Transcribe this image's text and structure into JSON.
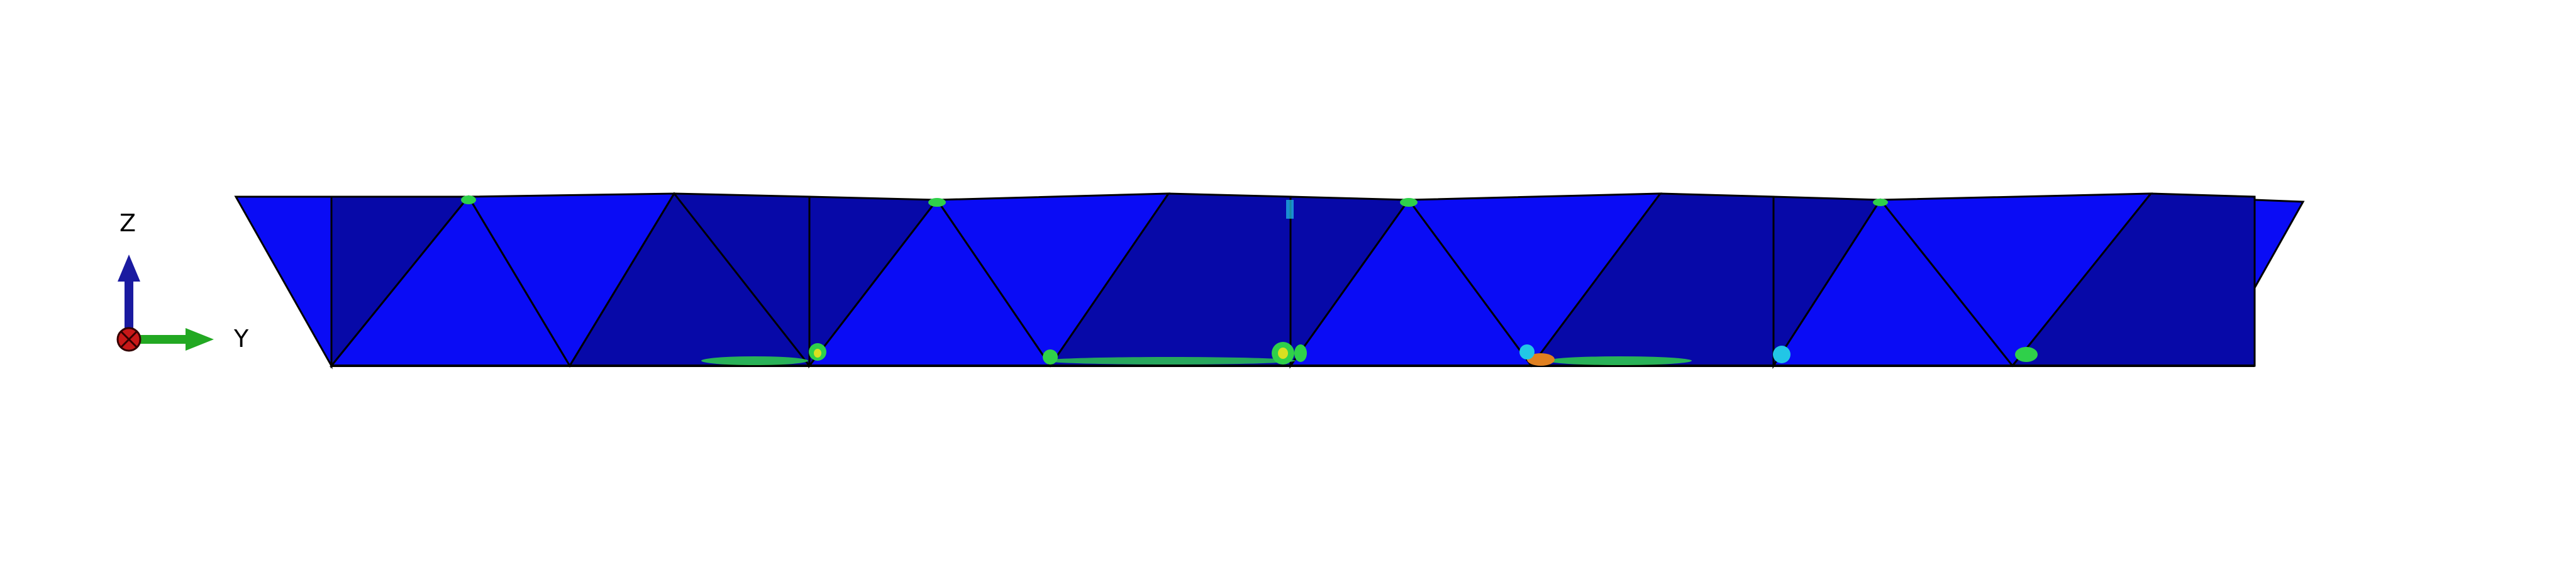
{
  "triad": {
    "z_label": "Z",
    "y_label": "Y"
  },
  "colors": {
    "background": "#ffffff",
    "face_light": "#0a0cf5",
    "face_dark": "#0709a8",
    "edge": "#000000",
    "stress_green": "#2fd04a",
    "stress_cyan": "#22c6e6",
    "stress_yellow": "#d8e020",
    "stress_orange": "#e08020",
    "axis_z": "#1a1aa0",
    "axis_y": "#22a822",
    "axis_x_origin": "#c81818"
  }
}
